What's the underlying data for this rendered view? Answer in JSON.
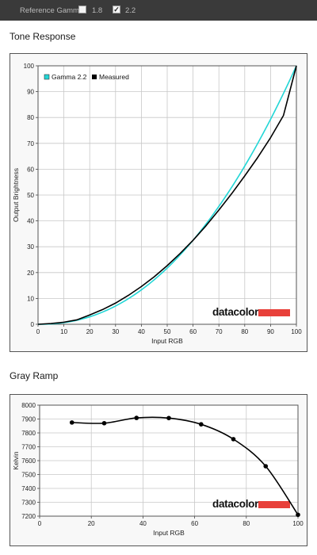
{
  "toolbar": {
    "label": "Reference Gamma:",
    "options": [
      {
        "label": "1.8",
        "checked": false
      },
      {
        "label": "2.2",
        "checked": true
      }
    ],
    "check_glyph": "✓"
  },
  "sections": {
    "tone_title": "Tone Response",
    "gray_title": "Gray Ramp"
  },
  "logo_text": "datacolor",
  "chart_data": [
    {
      "type": "line",
      "title": "Tone Response",
      "xlabel": "Input RGB",
      "ylabel": "Output Brightness",
      "xlim": [
        0,
        100
      ],
      "ylim": [
        0,
        100
      ],
      "xticks": [
        "0",
        "10",
        "20",
        "30",
        "40",
        "50",
        "60",
        "70",
        "80",
        "90",
        "100"
      ],
      "yticks": [
        "0",
        "10",
        "20",
        "30",
        "40",
        "50",
        "60",
        "70",
        "80",
        "90",
        "100"
      ],
      "grid": true,
      "legend_position": "top-left",
      "series": [
        {
          "name": "Gamma 2.2",
          "color": "#22d6d6",
          "gamma": 2.2
        },
        {
          "name": "Measured",
          "color": "#000000",
          "x": [
            0,
            5,
            10,
            15,
            20,
            25,
            30,
            35,
            40,
            45,
            50,
            55,
            60,
            65,
            70,
            75,
            80,
            85,
            90,
            95,
            100
          ],
          "y": [
            0,
            0.3,
            0.8,
            1.7,
            3.6,
            5.7,
            8.2,
            11.2,
            14.6,
            18.4,
            22.7,
            27.4,
            32.5,
            38.1,
            44.2,
            50.6,
            57.4,
            64.5,
            72.2,
            80.8,
            100
          ]
        }
      ]
    },
    {
      "type": "line",
      "title": "Gray Ramp",
      "xlabel": "Input RGB",
      "ylabel": "Kelvin",
      "xlim": [
        0,
        100
      ],
      "ylim": [
        7200,
        8000
      ],
      "xticks": [
        "0",
        "20",
        "40",
        "60",
        "80",
        "100"
      ],
      "yticks": [
        "7200",
        "7300",
        "7400",
        "7500",
        "7600",
        "7700",
        "7800",
        "7900",
        "8000"
      ],
      "grid": true,
      "series": [
        {
          "name": "",
          "color": "#000000",
          "x": [
            12.5,
            25,
            37.5,
            50,
            62.5,
            75,
            87.5,
            100
          ],
          "y": [
            7875,
            7870,
            7908,
            7907,
            7862,
            7755,
            7560,
            7210
          ]
        }
      ]
    }
  ]
}
